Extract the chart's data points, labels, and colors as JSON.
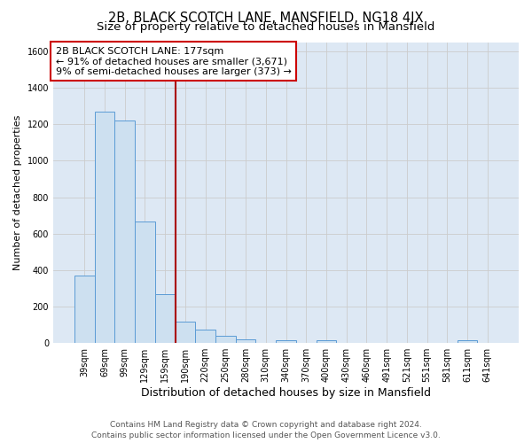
{
  "title": "2B, BLACK SCOTCH LANE, MANSFIELD, NG18 4JX",
  "subtitle": "Size of property relative to detached houses in Mansfield",
  "xlabel": "Distribution of detached houses by size in Mansfield",
  "ylabel": "Number of detached properties",
  "bar_categories": [
    "39sqm",
    "69sqm",
    "99sqm",
    "129sqm",
    "159sqm",
    "190sqm",
    "220sqm",
    "250sqm",
    "280sqm",
    "310sqm",
    "340sqm",
    "370sqm",
    "400sqm",
    "430sqm",
    "460sqm",
    "491sqm",
    "521sqm",
    "551sqm",
    "581sqm",
    "611sqm",
    "641sqm"
  ],
  "bar_values": [
    370,
    1270,
    1220,
    665,
    270,
    120,
    75,
    40,
    20,
    0,
    15,
    0,
    15,
    0,
    0,
    0,
    0,
    0,
    0,
    15,
    0
  ],
  "bar_color": "#cde0f0",
  "bar_edge_color": "#5b9bd5",
  "vline_color": "#aa0000",
  "annotation_line1": "2B BLACK SCOTCH LANE: 177sqm",
  "annotation_line2": "← 91% of detached houses are smaller (3,671)",
  "annotation_line3": "9% of semi-detached houses are larger (373) →",
  "annotation_box_color": "#ffffff",
  "annotation_box_edge": "#cc0000",
  "ylim": [
    0,
    1650
  ],
  "yticks": [
    0,
    200,
    400,
    600,
    800,
    1000,
    1200,
    1400,
    1600
  ],
  "grid_color": "#cccccc",
  "plot_bg_color": "#dde8f4",
  "fig_bg_color": "#ffffff",
  "footer_text": "Contains HM Land Registry data © Crown copyright and database right 2024.\nContains public sector information licensed under the Open Government Licence v3.0.",
  "title_fontsize": 10.5,
  "subtitle_fontsize": 9.5,
  "xlabel_fontsize": 9,
  "ylabel_fontsize": 8,
  "annotation_fontsize": 8,
  "footer_fontsize": 6.5,
  "tick_fontsize": 7
}
